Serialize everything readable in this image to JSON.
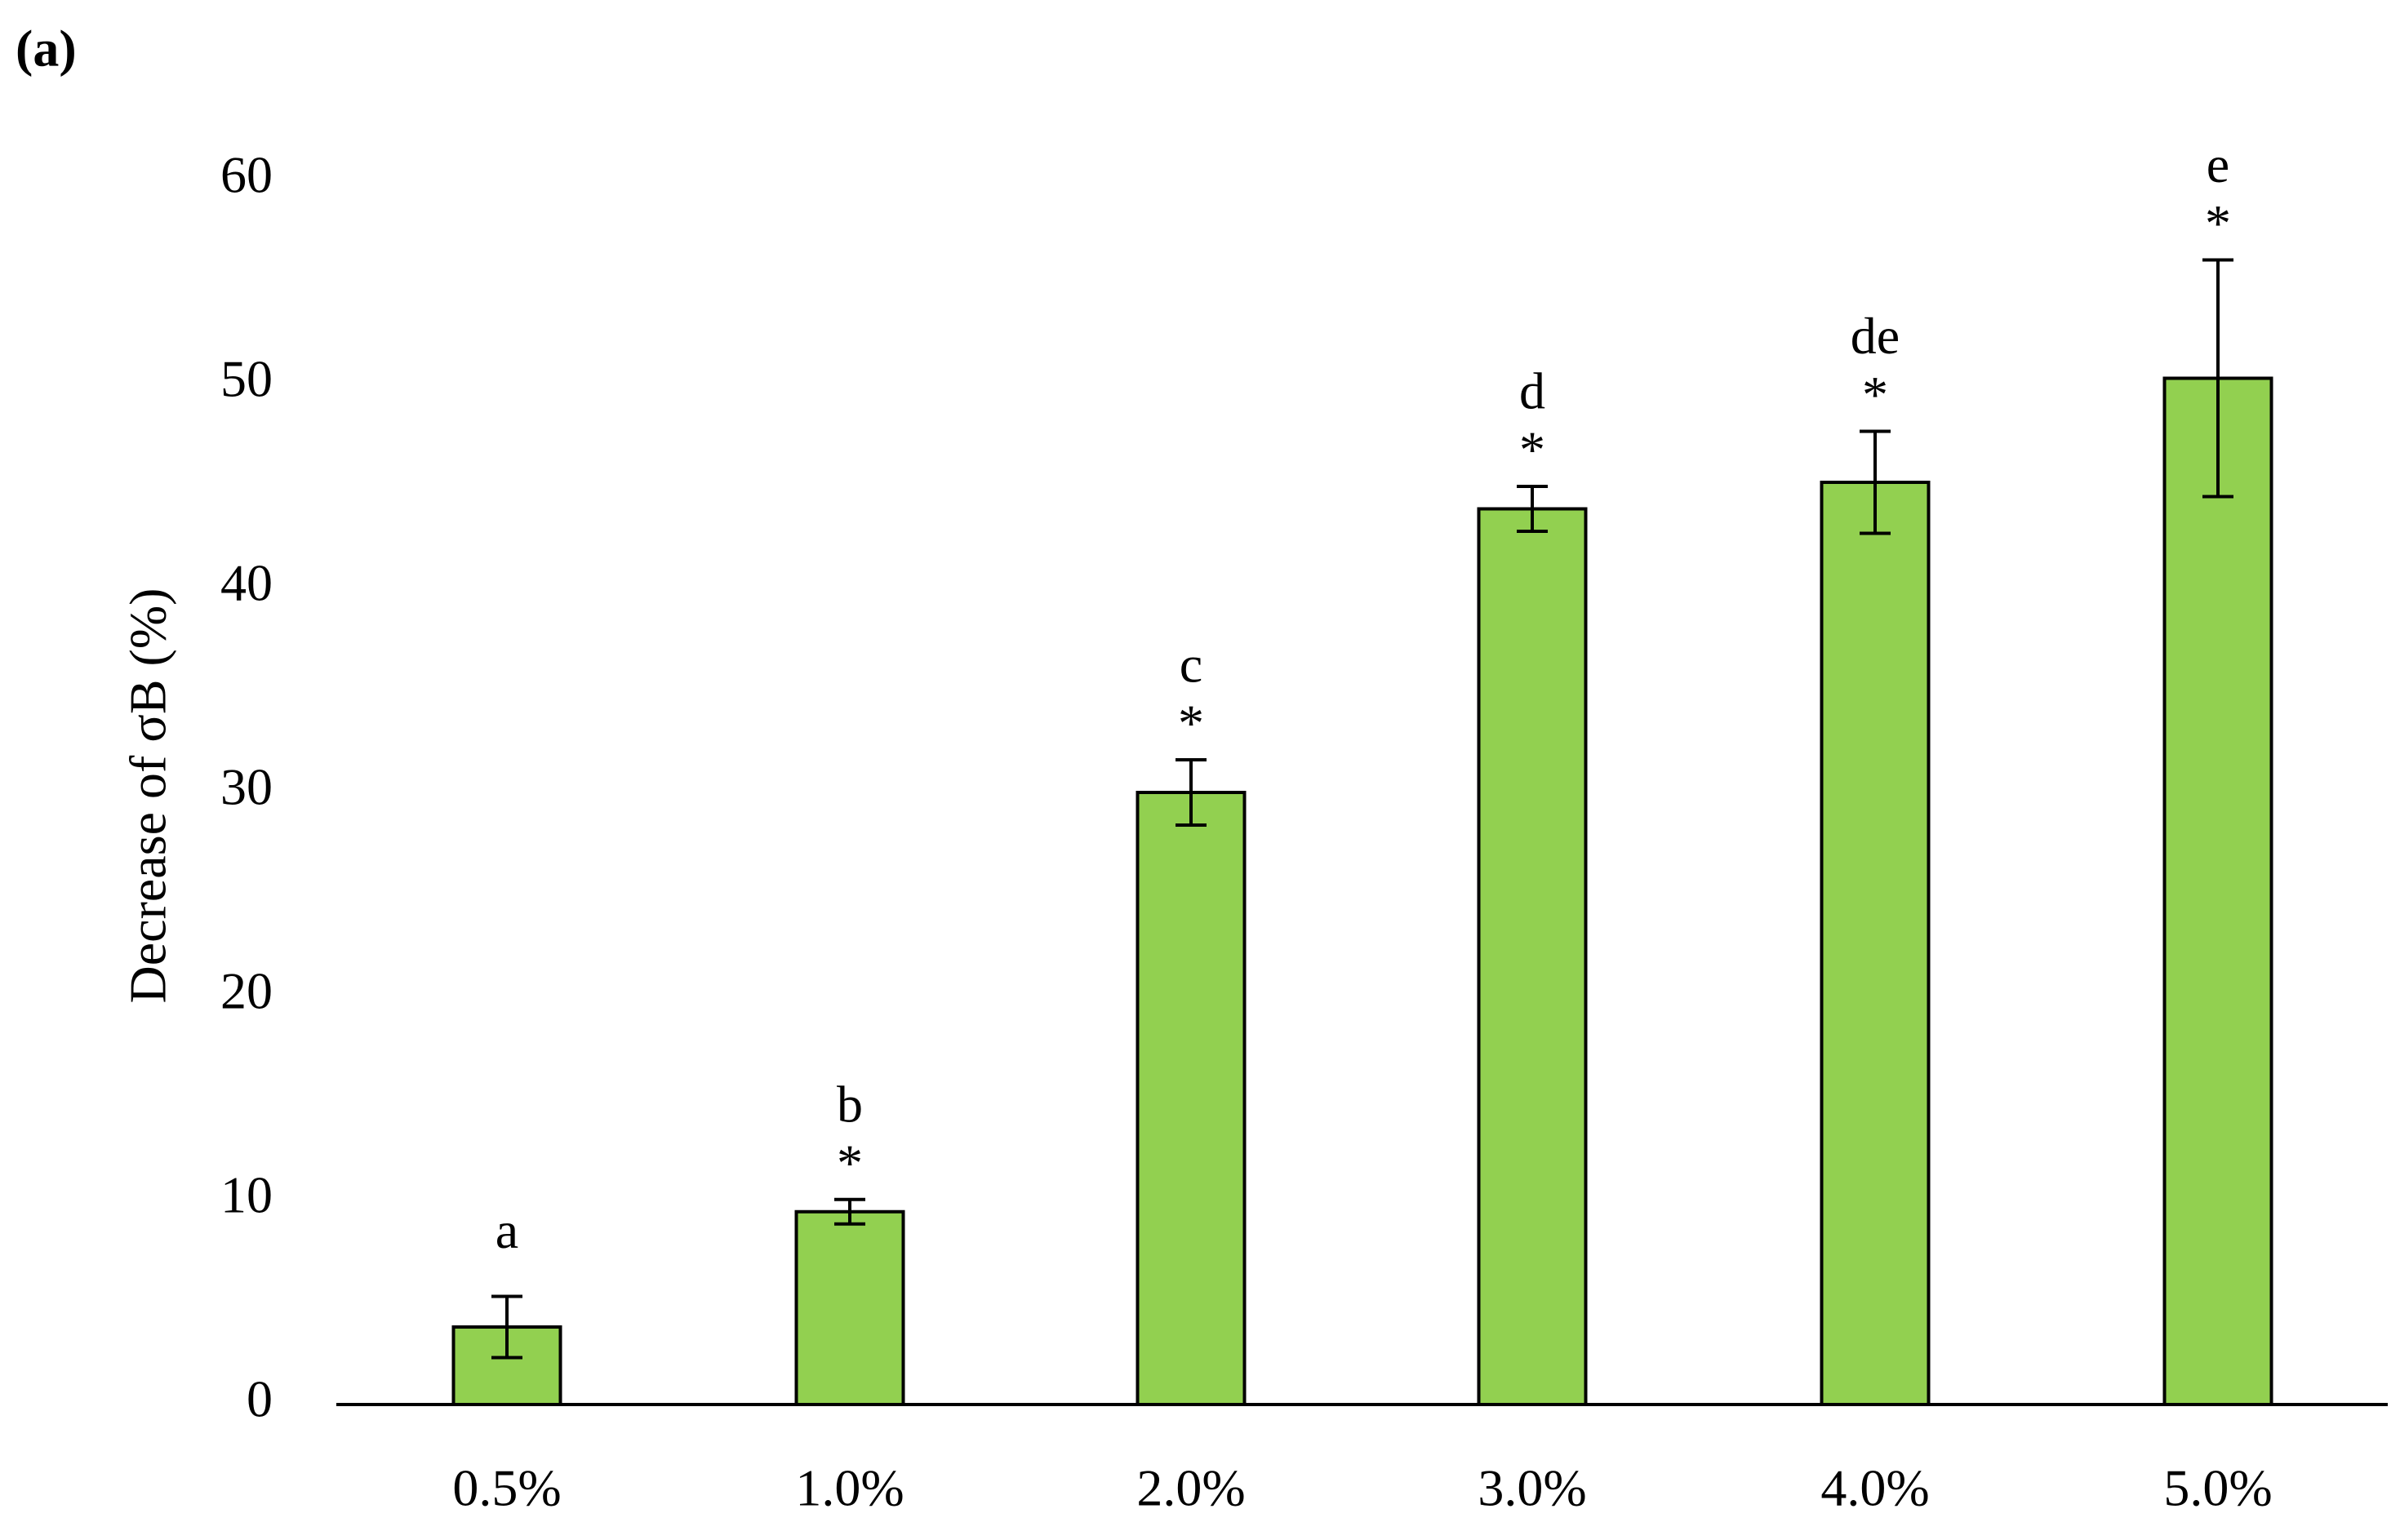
{
  "chart_data": {
    "type": "bar",
    "panel_label": "(a)",
    "y_label": "Decrease of σB (%)",
    "categories": [
      "0.5%",
      "1.0%",
      "2.0%",
      "3.0%",
      "4.0%",
      "5.0%"
    ],
    "values": [
      3.8,
      9.45,
      30.0,
      43.9,
      45.2,
      50.3
    ],
    "errors": [
      1.5,
      0.6,
      1.6,
      1.1,
      2.5,
      5.8
    ],
    "letters": [
      "a",
      "b",
      "c",
      "d",
      "de",
      "e"
    ],
    "markers": [
      null,
      "*",
      "*",
      "*",
      "*",
      "*"
    ],
    "color": "#92d050",
    "ylim": [
      0,
      60
    ],
    "yticks": [
      0,
      10,
      20,
      30,
      40,
      50,
      60
    ],
    "grid": false
  }
}
